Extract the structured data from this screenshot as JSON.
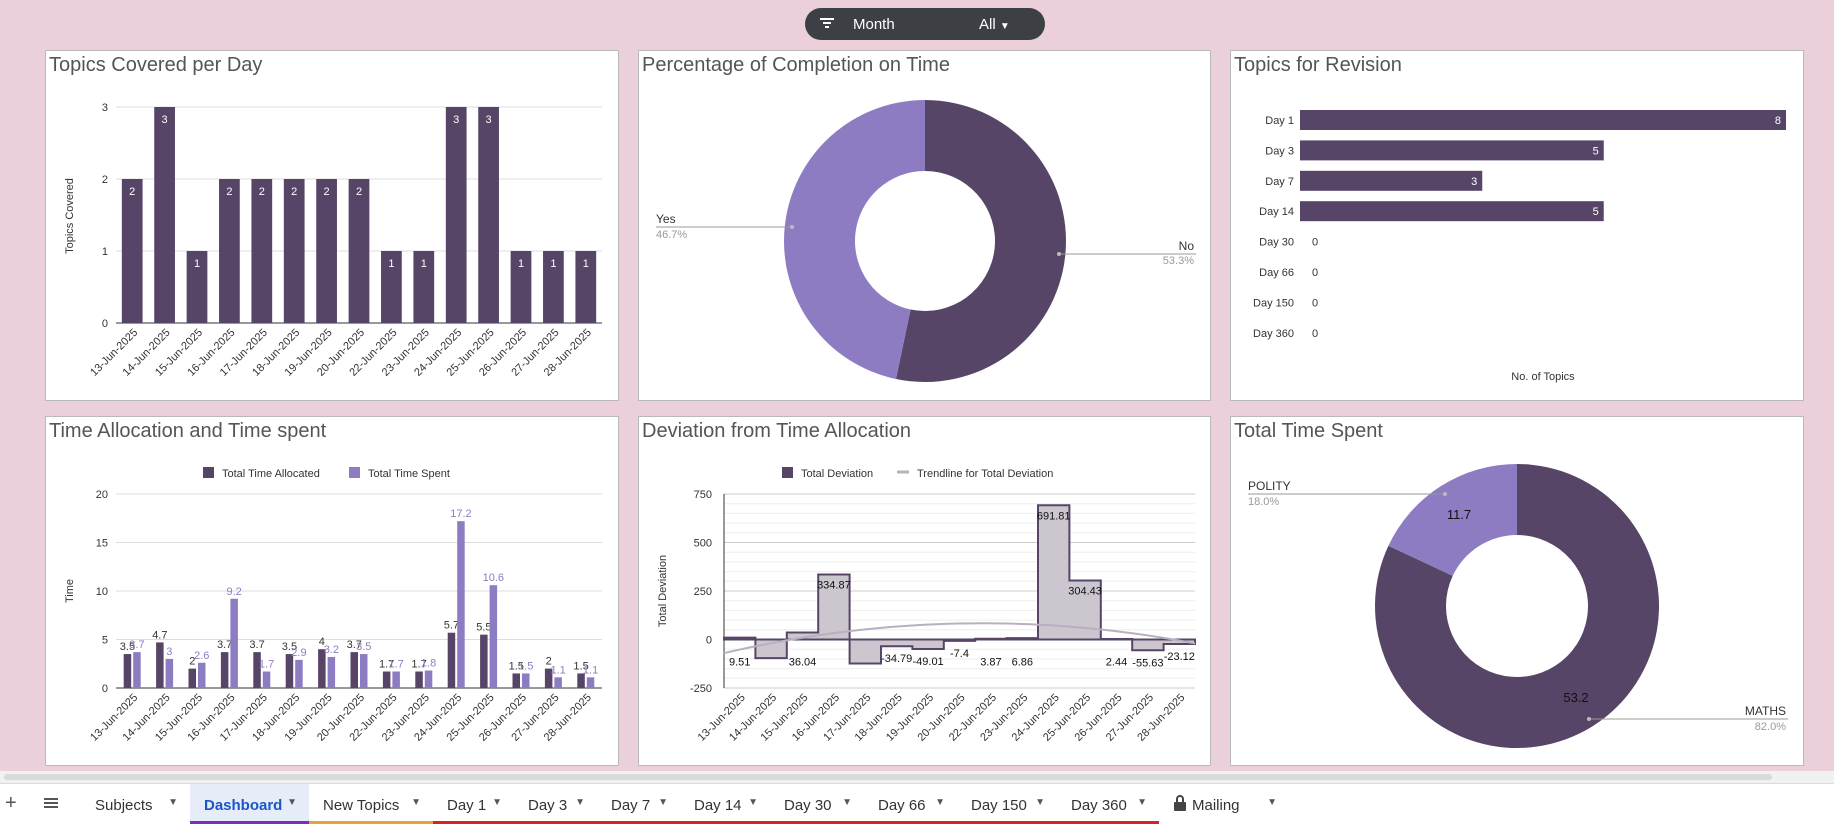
{
  "filter": {
    "icon": "filter-icon",
    "label": "Month",
    "value": "All"
  },
  "panels": {
    "p1": {
      "title": "Topics Covered per Day",
      "chart_data": {
        "type": "bar",
        "ylabel": "Topics Covered",
        "ylim": [
          0,
          3
        ],
        "yticks": [
          "0",
          "1",
          "2",
          "3"
        ],
        "categories": [
          "13-Jun-2025",
          "14-Jun-2025",
          "15-Jun-2025",
          "16-Jun-2025",
          "17-Jun-2025",
          "18-Jun-2025",
          "19-Jun-2025",
          "20-Jun-2025",
          "22-Jun-2025",
          "23-Jun-2025",
          "24-Jun-2025",
          "25-Jun-2025",
          "26-Jun-2025",
          "27-Jun-2025",
          "28-Jun-2025"
        ],
        "values": [
          2,
          3,
          1,
          2,
          2,
          2,
          2,
          2,
          1,
          1,
          3,
          3,
          1,
          1,
          1
        ],
        "value_labels": [
          "2",
          "3",
          "1",
          "2",
          "2",
          "2",
          "2",
          "2",
          "1",
          "1",
          "3",
          "3",
          "1",
          "1",
          "1"
        ],
        "color": "#574567"
      }
    },
    "p2": {
      "title": "Percentage of Completion on Time",
      "chart_data": {
        "type": "pie",
        "slices": [
          {
            "label": "No",
            "pct_label": "53.3%",
            "value": 53.3,
            "color": "#574567"
          },
          {
            "label": "Yes",
            "pct_label": "46.7%",
            "value": 46.7,
            "color": "#8e7cc3"
          }
        ]
      }
    },
    "p3": {
      "title": "Topics for Revision",
      "chart_data": {
        "type": "bar",
        "orientation": "horizontal",
        "xlabel": "No. of Topics",
        "categories": [
          "Day 1",
          "Day 3",
          "Day 7",
          "Day 14",
          "Day 30",
          "Day 66",
          "Day 150",
          "Day 360"
        ],
        "values": [
          8,
          5,
          3,
          5,
          0,
          0,
          0,
          0
        ],
        "value_labels": [
          "8",
          "5",
          "3",
          "5",
          "0",
          "0",
          "0",
          "0"
        ],
        "xlim": [
          0,
          8
        ],
        "color": "#574567"
      }
    },
    "p4": {
      "title": "Time Allocation and Time spent",
      "chart_data": {
        "type": "bar",
        "ylabel": "Time",
        "ylim": [
          0,
          20
        ],
        "yticks": [
          "0",
          "5",
          "10",
          "15",
          "20"
        ],
        "categories": [
          "13-Jun-2025",
          "14-Jun-2025",
          "15-Jun-2025",
          "16-Jun-2025",
          "17-Jun-2025",
          "18-Jun-2025",
          "19-Jun-2025",
          "20-Jun-2025",
          "22-Jun-2025",
          "23-Jun-2025",
          "24-Jun-2025",
          "25-Jun-2025",
          "26-Jun-2025",
          "27-Jun-2025",
          "28-Jun-2025"
        ],
        "series": [
          {
            "name": "Total Time Allocated",
            "color": "#574567",
            "values": [
              3.5,
              4.7,
              2,
              3.7,
              3.7,
              3.5,
              4,
              3.7,
              1.7,
              1.7,
              5.7,
              5.5,
              1.5,
              2,
              1.5
            ],
            "value_labels": [
              "3.5",
              "4.7",
              "2",
              "3.7",
              "3.7",
              "3.5",
              "4",
              "3.7",
              "1.7",
              "1.7",
              "5.7",
              "5.5",
              "1.5",
              "2",
              "1.5"
            ]
          },
          {
            "name": "Total Time Spent",
            "color": "#8e7cc3",
            "values": [
              3.7,
              3,
              2.6,
              9.2,
              1.7,
              2.9,
              3.2,
              3.5,
              1.7,
              1.8,
              17.2,
              10.6,
              1.5,
              1.1,
              1.1
            ],
            "value_labels": [
              "3.7",
              "3",
              "2.6",
              "9.2",
              "1.7",
              "2.9",
              "3.2",
              "3.5",
              "1.7",
              "1.8",
              "17.2",
              "10.6",
              "1.5",
              "1.1",
              "1.1"
            ]
          }
        ]
      }
    },
    "p5": {
      "title": "Deviation from Time Allocation",
      "chart_data": {
        "type": "area",
        "ylabel": "Total Deviation",
        "ylim": [
          -250,
          750
        ],
        "yticks": [
          "-250",
          "0",
          "250",
          "500",
          "750"
        ],
        "categories": [
          "13-Jun-2025",
          "14-Jun-2025",
          "15-Jun-2025",
          "16-Jun-2025",
          "17-Jun-2025",
          "18-Jun-2025",
          "19-Jun-2025",
          "20-Jun-2025",
          "22-Jun-2025",
          "23-Jun-2025",
          "24-Jun-2025",
          "25-Jun-2025",
          "26-Jun-2025",
          "27-Jun-2025",
          "28-Jun-2025"
        ],
        "series": [
          {
            "name": "Total Deviation",
            "color": "#574567",
            "values": [
              9.51,
              -96,
              36.04,
              334.87,
              -124,
              -34.79,
              -49.01,
              -7.4,
              3.87,
              6.86,
              691.81,
              304.43,
              2.44,
              -55.63,
              -23.12
            ],
            "value_labels": [
              "9.51",
              "",
              "36.04",
              "334.87",
              "",
              "-34.79",
              "-49.01",
              "-7.4",
              "3.87",
              "6.86",
              "691.81",
              "304.43",
              "2.44",
              "-55.63",
              "-23.12"
            ]
          },
          {
            "name": "Trendline for Total Deviation",
            "color": "#b7b0bd"
          }
        ]
      }
    },
    "p6": {
      "title": "Total Time Spent",
      "chart_data": {
        "type": "pie",
        "slices": [
          {
            "label": "MATHS",
            "pct_label": "82.0%",
            "value": 53.2,
            "value_label": "53.2",
            "color": "#574567"
          },
          {
            "label": "POLITY",
            "pct_label": "18.0%",
            "value": 11.7,
            "value_label": "11.7",
            "color": "#8e7cc3"
          }
        ]
      }
    }
  },
  "tabs": {
    "add_icon": "plus-icon",
    "menu_icon": "hamburger-icon",
    "items": [
      {
        "label": "Subjects",
        "underline": "",
        "active": false
      },
      {
        "label": "Dashboard",
        "underline": "#7b2fb8",
        "active": true
      },
      {
        "label": "New Topics",
        "underline": "#e7a33a",
        "active": false
      },
      {
        "label": "Day 1",
        "underline": "#d9202a",
        "active": false
      },
      {
        "label": "Day 3",
        "underline": "#d9202a",
        "active": false
      },
      {
        "label": "Day 7",
        "underline": "#d9202a",
        "active": false
      },
      {
        "label": "Day 14",
        "underline": "#d9202a",
        "active": false
      },
      {
        "label": "Day 30",
        "underline": "#d9202a",
        "active": false
      },
      {
        "label": "Day 66",
        "underline": "#d9202a",
        "active": false
      },
      {
        "label": "Day 150",
        "underline": "#d9202a",
        "active": false
      },
      {
        "label": "Day 360",
        "underline": "#d9202a",
        "active": false
      },
      {
        "label": "Mailing",
        "underline": "",
        "active": false,
        "icon": "lock-icon"
      }
    ]
  }
}
